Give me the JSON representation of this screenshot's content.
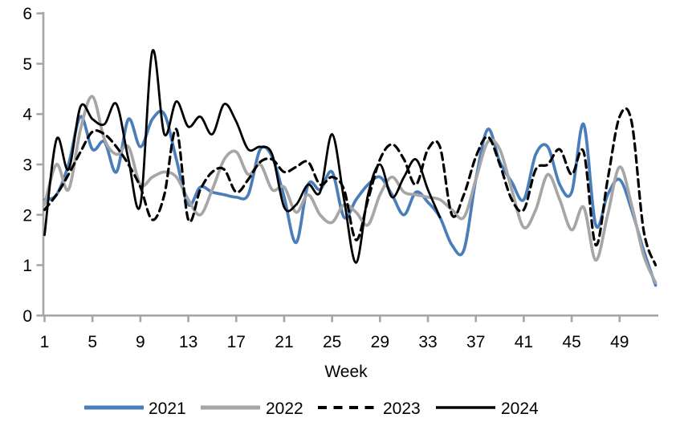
{
  "page": {
    "background": "#ffffff"
  },
  "chart_data": {
    "type": "line",
    "title": "",
    "xlabel": "Week",
    "ylabel": "",
    "ylim": [
      0,
      6
    ],
    "xlim": [
      1,
      52
    ],
    "grid": false,
    "legend_position": "bottom",
    "axis_color": "#a6a6a6",
    "text_color": "#000000",
    "y_ticks": [
      0,
      1,
      2,
      3,
      4,
      5,
      6
    ],
    "x_ticks": [
      1,
      5,
      9,
      13,
      17,
      21,
      25,
      29,
      33,
      37,
      41,
      45,
      49
    ],
    "x": [
      1,
      2,
      3,
      4,
      5,
      6,
      7,
      8,
      9,
      10,
      11,
      12,
      13,
      14,
      15,
      16,
      17,
      18,
      19,
      20,
      21,
      22,
      23,
      24,
      25,
      26,
      27,
      28,
      29,
      30,
      31,
      32,
      33,
      34,
      35,
      36,
      37,
      38,
      39,
      40,
      41,
      42,
      43,
      44,
      45,
      46,
      47,
      48,
      49,
      50,
      51,
      52
    ],
    "series": [
      {
        "name": "2021",
        "color": "#4a7ebb",
        "style": "solid",
        "start_week": 1,
        "values": [
          2.3,
          2.4,
          3.0,
          3.95,
          3.3,
          3.45,
          2.85,
          3.9,
          3.35,
          3.9,
          4.0,
          3.1,
          2.2,
          2.55,
          2.45,
          2.4,
          2.35,
          2.4,
          3.3,
          3.15,
          2.35,
          1.45,
          2.6,
          2.5,
          2.85,
          1.95,
          2.3,
          2.6,
          2.75,
          2.4,
          2.0,
          2.45,
          2.25,
          1.95,
          1.4,
          1.3,
          2.7,
          3.7,
          3.05,
          2.65,
          2.3,
          3.2,
          3.35,
          2.6,
          2.45,
          3.8,
          1.8,
          2.4,
          2.7,
          2.1,
          1.3,
          0.6
        ]
      },
      {
        "name": "2022",
        "color": "#a6a6a6",
        "style": "solid",
        "start_week": 1,
        "values": [
          2.2,
          3.0,
          2.5,
          3.7,
          4.35,
          3.5,
          3.2,
          3.35,
          2.6,
          2.75,
          2.85,
          2.75,
          2.3,
          2.0,
          2.5,
          3.1,
          3.25,
          2.8,
          3.0,
          2.5,
          2.55,
          2.05,
          2.4,
          2.0,
          1.85,
          2.2,
          2.05,
          1.8,
          2.4,
          2.75,
          2.45,
          2.4,
          2.35,
          2.3,
          2.1,
          1.95,
          2.7,
          3.45,
          3.3,
          2.5,
          1.75,
          2.1,
          2.8,
          2.3,
          1.7,
          2.15,
          1.1,
          2.0,
          2.95,
          2.2,
          1.2,
          0.65
        ]
      },
      {
        "name": "2023",
        "color": "#000000",
        "style": "dashed",
        "start_week": 1,
        "values": [
          2.1,
          2.4,
          2.8,
          3.25,
          3.65,
          3.6,
          3.35,
          3.0,
          2.55,
          1.9,
          2.4,
          3.7,
          1.9,
          2.5,
          2.85,
          2.9,
          2.45,
          2.7,
          3.05,
          3.1,
          2.85,
          2.95,
          3.05,
          2.6,
          2.75,
          2.5,
          1.5,
          2.3,
          3.1,
          3.4,
          3.1,
          2.6,
          3.3,
          3.35,
          2.0,
          2.4,
          3.15,
          3.55,
          3.0,
          2.3,
          2.1,
          2.9,
          3.0,
          3.3,
          2.8,
          3.25,
          1.4,
          2.7,
          3.95,
          3.85,
          1.7,
          1.0
        ]
      },
      {
        "name": "2024",
        "color": "#000000",
        "style": "solid",
        "start_week": 1,
        "values": [
          1.6,
          3.5,
          2.9,
          4.15,
          3.9,
          3.8,
          4.2,
          3.1,
          2.2,
          5.25,
          3.6,
          4.25,
          3.75,
          3.95,
          3.6,
          4.2,
          3.85,
          3.3,
          3.35,
          3.2,
          2.15,
          2.2,
          2.6,
          2.45,
          3.6,
          2.3,
          1.05,
          2.4,
          3.0,
          2.35,
          2.75,
          3.1,
          2.5,
          1.95
        ]
      }
    ]
  }
}
